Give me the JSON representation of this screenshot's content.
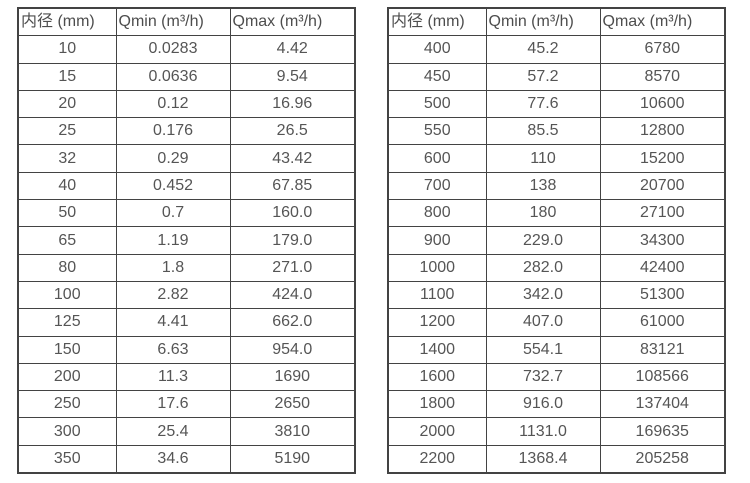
{
  "colors": {
    "border": "#434343",
    "text": "#555555",
    "header_text": "#4d4d4d",
    "background": "#ffffff"
  },
  "tables": [
    {
      "name": "small-diameter-flow-table",
      "headers": [
        "内径 (mm)",
        "Qmin (m³/h)",
        "Qmax (m³/h)"
      ],
      "rows": [
        [
          "10",
          "0.0283",
          "4.42"
        ],
        [
          "15",
          "0.0636",
          "9.54"
        ],
        [
          "20",
          "0.12",
          "16.96"
        ],
        [
          "25",
          "0.176",
          "26.5"
        ],
        [
          "32",
          "0.29",
          "43.42"
        ],
        [
          "40",
          "0.452",
          "67.85"
        ],
        [
          "50",
          "0.7",
          "160.0"
        ],
        [
          "65",
          "1.19",
          "179.0"
        ],
        [
          "80",
          "1.8",
          "271.0"
        ],
        [
          "100",
          "2.82",
          "424.0"
        ],
        [
          "125",
          "4.41",
          "662.0"
        ],
        [
          "150",
          "6.63",
          "954.0"
        ],
        [
          "200",
          "11.3",
          "1690"
        ],
        [
          "250",
          "17.6",
          "2650"
        ],
        [
          "300",
          "25.4",
          "3810"
        ],
        [
          "350",
          "34.6",
          "5190"
        ]
      ]
    },
    {
      "name": "large-diameter-flow-table",
      "headers": [
        "内径 (mm)",
        "Qmin (m³/h)",
        "Qmax (m³/h)"
      ],
      "rows": [
        [
          "400",
          "45.2",
          "6780"
        ],
        [
          "450",
          "57.2",
          "8570"
        ],
        [
          "500",
          "77.6",
          "10600"
        ],
        [
          "550",
          "85.5",
          "12800"
        ],
        [
          "600",
          "110",
          "15200"
        ],
        [
          "700",
          "138",
          "20700"
        ],
        [
          "800",
          "180",
          "27100"
        ],
        [
          "900",
          "229.0",
          "34300"
        ],
        [
          "1000",
          "282.0",
          "42400"
        ],
        [
          "1100",
          "342.0",
          "51300"
        ],
        [
          "1200",
          "407.0",
          "61000"
        ],
        [
          "1400",
          "554.1",
          "83121"
        ],
        [
          "1600",
          "732.7",
          "108566"
        ],
        [
          "1800",
          "916.0",
          "137404"
        ],
        [
          "2000",
          "1131.0",
          "169635"
        ],
        [
          "2200",
          "1368.4",
          "205258"
        ]
      ]
    }
  ]
}
